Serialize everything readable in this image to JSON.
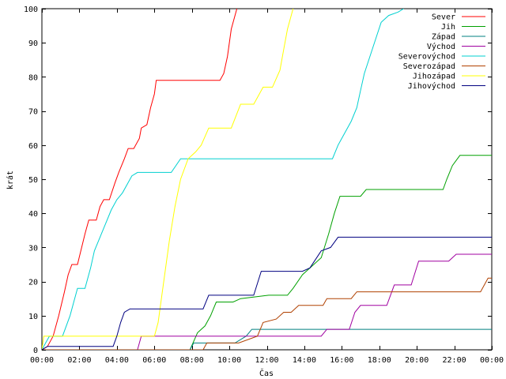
{
  "chart_data": {
    "type": "line",
    "title": "",
    "xlabel": "Čas",
    "ylabel": "krát",
    "xlim": [
      0,
      24
    ],
    "ylim": [
      0,
      100
    ],
    "x_tick_labels": [
      "00:00",
      "02:00",
      "04:00",
      "06:00",
      "08:00",
      "10:00",
      "12:00",
      "14:00",
      "16:00",
      "18:00",
      "20:00",
      "22:00",
      "00:00"
    ],
    "x_ticks": [
      0,
      2,
      4,
      6,
      8,
      10,
      12,
      14,
      16,
      18,
      20,
      22,
      24
    ],
    "y_ticks": [
      0,
      10,
      20,
      30,
      40,
      50,
      60,
      70,
      80,
      90,
      100
    ],
    "grid": false,
    "legend_position": "top-right",
    "series": [
      {
        "name": "Sever",
        "color": "#ff0000",
        "points": [
          [
            0,
            0
          ],
          [
            0.3,
            1
          ],
          [
            0.6,
            4
          ],
          [
            0.9,
            10
          ],
          [
            1.2,
            17
          ],
          [
            1.4,
            22
          ],
          [
            1.6,
            25
          ],
          [
            1.9,
            25
          ],
          [
            2.3,
            34
          ],
          [
            2.5,
            38
          ],
          [
            2.9,
            38
          ],
          [
            3.1,
            42
          ],
          [
            3.3,
            44
          ],
          [
            3.6,
            44
          ],
          [
            3.9,
            49
          ],
          [
            4.1,
            52
          ],
          [
            4.4,
            56
          ],
          [
            4.6,
            59
          ],
          [
            4.9,
            59
          ],
          [
            5.2,
            62
          ],
          [
            5.3,
            65
          ],
          [
            5.6,
            66
          ],
          [
            5.8,
            71
          ],
          [
            6.0,
            75
          ],
          [
            6.1,
            79
          ],
          [
            7.0,
            79
          ],
          [
            8.0,
            79
          ],
          [
            9.5,
            79
          ],
          [
            9.7,
            81
          ],
          [
            9.9,
            86
          ],
          [
            10.1,
            94
          ],
          [
            10.4,
            100
          ]
        ]
      },
      {
        "name": "Jih",
        "color": "#00a000",
        "points": [
          [
            0,
            0
          ],
          [
            7.9,
            0
          ],
          [
            8.3,
            5
          ],
          [
            8.7,
            7
          ],
          [
            9.0,
            10
          ],
          [
            9.3,
            14
          ],
          [
            10.2,
            14
          ],
          [
            10.6,
            15
          ],
          [
            12.1,
            16
          ],
          [
            13.1,
            16
          ],
          [
            13.4,
            18
          ],
          [
            13.9,
            22
          ],
          [
            14.5,
            25
          ],
          [
            14.9,
            27
          ],
          [
            15.3,
            34
          ],
          [
            15.6,
            40
          ],
          [
            15.9,
            45
          ],
          [
            17.0,
            45
          ],
          [
            17.3,
            47
          ],
          [
            18.9,
            47
          ],
          [
            21.4,
            47
          ],
          [
            21.6,
            50
          ],
          [
            21.9,
            54
          ],
          [
            22.3,
            57
          ],
          [
            24,
            57
          ]
        ]
      },
      {
        "name": "Západ",
        "color": "#008080",
        "points": [
          [
            0,
            0
          ],
          [
            7.9,
            0
          ],
          [
            8.1,
            2
          ],
          [
            10.3,
            2
          ],
          [
            10.9,
            4
          ],
          [
            11.2,
            6
          ],
          [
            24,
            6
          ]
        ]
      },
      {
        "name": "Východ",
        "color": "#a000a0",
        "points": [
          [
            0,
            0
          ],
          [
            5.1,
            0
          ],
          [
            5.3,
            4
          ],
          [
            8.0,
            4
          ],
          [
            14.9,
            4
          ],
          [
            15.2,
            6
          ],
          [
            16.4,
            6
          ],
          [
            16.7,
            11
          ],
          [
            17.0,
            13
          ],
          [
            18.4,
            13
          ],
          [
            18.8,
            19
          ],
          [
            19.7,
            19
          ],
          [
            20.1,
            26
          ],
          [
            21.7,
            26
          ],
          [
            22.1,
            28
          ],
          [
            24,
            28
          ]
        ]
      },
      {
        "name": "Severovýchod",
        "color": "#00d0d0",
        "points": [
          [
            0,
            0
          ],
          [
            0.2,
            2
          ],
          [
            0.4,
            4
          ],
          [
            1.1,
            4
          ],
          [
            1.5,
            10
          ],
          [
            1.9,
            18
          ],
          [
            2.3,
            18
          ],
          [
            2.6,
            24
          ],
          [
            2.8,
            29
          ],
          [
            3.1,
            33
          ],
          [
            3.4,
            37
          ],
          [
            3.7,
            41
          ],
          [
            4.0,
            44
          ],
          [
            4.3,
            46
          ],
          [
            4.6,
            49
          ],
          [
            4.8,
            51
          ],
          [
            5.1,
            52
          ],
          [
            6.9,
            52
          ],
          [
            7.4,
            56
          ],
          [
            7.8,
            56
          ],
          [
            14.5,
            56
          ],
          [
            15.5,
            56
          ],
          [
            15.8,
            60
          ],
          [
            16.0,
            62
          ],
          [
            16.2,
            64
          ],
          [
            16.5,
            67
          ],
          [
            16.8,
            71
          ],
          [
            17.0,
            76
          ],
          [
            17.2,
            81
          ],
          [
            17.5,
            86
          ],
          [
            17.8,
            91
          ],
          [
            18.1,
            96
          ],
          [
            18.5,
            98
          ],
          [
            19.0,
            99
          ],
          [
            19.3,
            100
          ]
        ]
      },
      {
        "name": "Severozápad",
        "color": "#b04000",
        "points": [
          [
            0,
            0
          ],
          [
            8.6,
            0
          ],
          [
            8.8,
            2
          ],
          [
            10.5,
            2
          ],
          [
            11.5,
            4
          ],
          [
            11.8,
            8
          ],
          [
            12.5,
            9
          ],
          [
            12.9,
            11
          ],
          [
            13.3,
            11
          ],
          [
            13.7,
            13
          ],
          [
            15.0,
            13
          ],
          [
            15.2,
            15
          ],
          [
            16.5,
            15
          ],
          [
            16.8,
            17
          ],
          [
            18.8,
            17
          ],
          [
            19.0,
            17
          ],
          [
            23.4,
            17
          ],
          [
            23.8,
            21
          ],
          [
            24,
            21
          ]
        ]
      },
      {
        "name": "Jihozápad",
        "color": "#ffff00",
        "points": [
          [
            0,
            0
          ],
          [
            0.1,
            4
          ],
          [
            6.0,
            4
          ],
          [
            6.2,
            8
          ],
          [
            6.5,
            20
          ],
          [
            6.8,
            32
          ],
          [
            7.1,
            42
          ],
          [
            7.4,
            50
          ],
          [
            7.8,
            56
          ],
          [
            8.2,
            58
          ],
          [
            8.5,
            60
          ],
          [
            8.9,
            65
          ],
          [
            9.2,
            65
          ],
          [
            10.1,
            65
          ],
          [
            10.6,
            72
          ],
          [
            11.3,
            72
          ],
          [
            11.8,
            77
          ],
          [
            12.3,
            77
          ],
          [
            12.7,
            82
          ],
          [
            12.9,
            88
          ],
          [
            13.1,
            94
          ],
          [
            13.4,
            100
          ]
        ]
      },
      {
        "name": "Jihovýchod",
        "color": "#000080",
        "points": [
          [
            0,
            0
          ],
          [
            0.3,
            1
          ],
          [
            2.0,
            1
          ],
          [
            3.8,
            1
          ],
          [
            4.0,
            4
          ],
          [
            4.2,
            8
          ],
          [
            4.4,
            11
          ],
          [
            4.7,
            12
          ],
          [
            7.2,
            12
          ],
          [
            8.6,
            12
          ],
          [
            8.9,
            16
          ],
          [
            10.0,
            16
          ],
          [
            11.3,
            16
          ],
          [
            11.7,
            23
          ],
          [
            13.9,
            23
          ],
          [
            14.3,
            24
          ],
          [
            14.9,
            29
          ],
          [
            15.4,
            30
          ],
          [
            15.8,
            33
          ],
          [
            18.0,
            33
          ],
          [
            24,
            33
          ]
        ]
      }
    ]
  }
}
